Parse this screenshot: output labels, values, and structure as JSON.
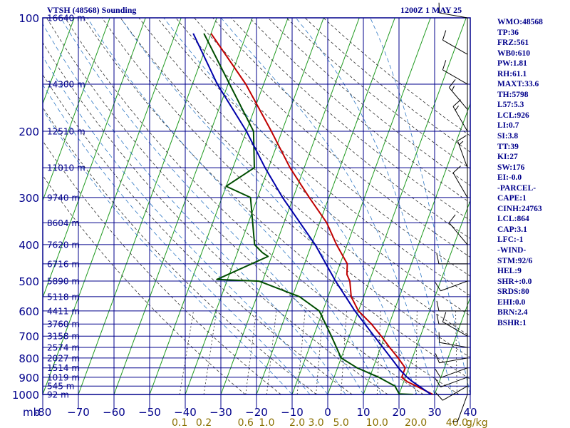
{
  "header": {
    "title": "VTSH (48568) Sounding",
    "time": "1200Z  1 MAY 25"
  },
  "indices": [
    "WMO:48568",
    "TP:36",
    "FRZ:561",
    "WB0:610",
    "PW:1.81",
    "RH:61.1",
    "MAXT:33.6",
    "TH:5798",
    "L57:5.3",
    "LCL:926",
    "LI:0.7",
    "SI:3.8",
    "TT:39",
    "KI:27",
    "SW:176",
    "EI:-0.0",
    "-PARCEL-",
    "CAPE:1",
    "CINH:24763",
    "LCL:864",
    "CAP:3.1",
    "LFC:-1",
    "-WIND-",
    "STM:92/6",
    "HEL:9",
    "SHR+:0.0",
    "SRDS:80",
    "EHI:0.0",
    "BRN:2.4",
    "BSHR:1"
  ],
  "chart_data": {
    "type": "line",
    "title": "VTSH (48568) Sounding",
    "xlabel": "",
    "ylabel": "",
    "x_unit": "°C",
    "y_unit": "mb",
    "xlim": [
      -80,
      40
    ],
    "ylim": [
      1000,
      100
    ],
    "y_scale": "log",
    "x_ticks": [
      -80,
      -70,
      -60,
      -50,
      -40,
      -30,
      -20,
      -10,
      0,
      10,
      20,
      30,
      40
    ],
    "x_tick_labels": [
      "-80",
      "−70",
      "−60",
      "−50",
      "−40",
      "−30",
      "−20",
      "−10",
      "0",
      "10",
      "20",
      "30",
      "40"
    ],
    "y_ticks": [
      100,
      200,
      300,
      400,
      500,
      600,
      700,
      800,
      900,
      1000
    ],
    "y_tick_labels": [
      "100",
      "200",
      "300",
      "400",
      "500",
      "600",
      "700",
      "800",
      "900",
      "1000"
    ],
    "y_axis_unit_label": "mb",
    "height_labels": [
      {
        "p": 100,
        "text": "16640 m"
      },
      {
        "p": 150,
        "text": "14300 m"
      },
      {
        "p": 200,
        "text": "12510 m"
      },
      {
        "p": 250,
        "text": "11010 m"
      },
      {
        "p": 300,
        "text": "9740 m"
      },
      {
        "p": 350,
        "text": "8604 m"
      },
      {
        "p": 400,
        "text": "7620 m"
      },
      {
        "p": 450,
        "text": "6716 m"
      },
      {
        "p": 500,
        "text": "5890 m"
      },
      {
        "p": 550,
        "text": "5118 m"
      },
      {
        "p": 600,
        "text": "4411 m"
      },
      {
        "p": 650,
        "text": "3760 m"
      },
      {
        "p": 700,
        "text": "3158 m"
      },
      {
        "p": 750,
        "text": "2574 m"
      },
      {
        "p": 800,
        "text": "2027 m"
      },
      {
        "p": 850,
        "text": "1514 m"
      },
      {
        "p": 900,
        "text": "1019 m"
      },
      {
        "p": 950,
        "text": "545 m"
      },
      {
        "p": 1000,
        "text": "92 m"
      }
    ],
    "mixing_ratio_labels": [
      "0.1",
      "0.2",
      "0.6",
      "1.0",
      "2.0",
      "3.0",
      "5.0",
      "10.0",
      "20.0",
      "40.0"
    ],
    "mixing_ratio_unit": "g/kg",
    "colors": {
      "grid": "#00008b",
      "isotherm": "#1f9a1f",
      "dry_adiabat": "#2f2f2f",
      "moist_adiabat": "#2f78c4",
      "temperature": "#c00000",
      "dewpoint": "#004d00",
      "parcel": "#0000aa",
      "text": "#00008b",
      "mixing_label": "#8a7000"
    },
    "series": [
      {
        "role": "temperature",
        "points": [
          {
            "p": 1000,
            "t": 29.5
          },
          {
            "p": 950,
            "t": 24
          },
          {
            "p": 925,
            "t": 21
          },
          {
            "p": 900,
            "t": 19
          },
          {
            "p": 850,
            "t": 19
          },
          {
            "p": 800,
            "t": 16
          },
          {
            "p": 750,
            "t": 12.5
          },
          {
            "p": 700,
            "t": 9
          },
          {
            "p": 650,
            "t": 5
          },
          {
            "p": 600,
            "t": 0
          },
          {
            "p": 550,
            "t": -3.5
          },
          {
            "p": 500,
            "t": -5.5
          },
          {
            "p": 480,
            "t": -7
          },
          {
            "p": 450,
            "t": -8
          },
          {
            "p": 400,
            "t": -13
          },
          {
            "p": 350,
            "t": -18
          },
          {
            "p": 300,
            "t": -25.5
          },
          {
            "p": 250,
            "t": -34
          },
          {
            "p": 200,
            "t": -43
          },
          {
            "p": 150,
            "t": -55
          },
          {
            "p": 110,
            "t": -70
          }
        ]
      },
      {
        "role": "dewpoint",
        "points": [
          {
            "p": 1000,
            "t": 24
          },
          {
            "p": 997,
            "t": 20
          },
          {
            "p": 950,
            "t": 18
          },
          {
            "p": 900,
            "t": 12.5
          },
          {
            "p": 850,
            "t": 5.5
          },
          {
            "p": 800,
            "t": 0
          },
          {
            "p": 700,
            "t": -5
          },
          {
            "p": 600,
            "t": -11
          },
          {
            "p": 550,
            "t": -18
          },
          {
            "p": 500,
            "t": -31
          },
          {
            "p": 495,
            "t": -43
          },
          {
            "p": 430,
            "t": -31
          },
          {
            "p": 420,
            "t": -33
          },
          {
            "p": 400,
            "t": -36
          },
          {
            "p": 300,
            "t": -42
          },
          {
            "p": 280,
            "t": -50
          },
          {
            "p": 250,
            "t": -44
          },
          {
            "p": 200,
            "t": -48
          },
          {
            "p": 110,
            "t": -72
          }
        ]
      },
      {
        "role": "parcel",
        "points": [
          {
            "p": 1000,
            "t": 29
          },
          {
            "p": 925,
            "t": 22.5
          },
          {
            "p": 900,
            "t": 20.5
          },
          {
            "p": 864,
            "t": 18
          },
          {
            "p": 800,
            "t": 14
          },
          {
            "p": 700,
            "t": 7
          },
          {
            "p": 600,
            "t": -1
          },
          {
            "p": 500,
            "t": -9.5
          },
          {
            "p": 400,
            "t": -19
          },
          {
            "p": 300,
            "t": -33
          },
          {
            "p": 250,
            "t": -41
          },
          {
            "p": 200,
            "t": -50
          },
          {
            "p": 150,
            "t": -63
          },
          {
            "p": 110,
            "t": -75
          }
        ]
      }
    ],
    "wind_barbs": [
      {
        "p": 1000,
        "dir": 200,
        "spd": 5
      },
      {
        "p": 950,
        "dir": 240,
        "spd": 10
      },
      {
        "p": 900,
        "dir": 250,
        "spd": 10
      },
      {
        "p": 850,
        "dir": 250,
        "spd": 10
      },
      {
        "p": 800,
        "dir": 260,
        "spd": 10
      },
      {
        "p": 750,
        "dir": 280,
        "spd": 10
      },
      {
        "p": 700,
        "dir": 300,
        "spd": 10
      },
      {
        "p": 650,
        "dir": 270,
        "spd": 10
      },
      {
        "p": 600,
        "dir": 270,
        "spd": 10
      },
      {
        "p": 500,
        "dir": 250,
        "spd": 10
      },
      {
        "p": 450,
        "dir": 270,
        "spd": 10
      },
      {
        "p": 400,
        "dir": 320,
        "spd": 10
      },
      {
        "p": 300,
        "dir": 330,
        "spd": 10
      },
      {
        "p": 250,
        "dir": 340,
        "spd": 15
      },
      {
        "p": 200,
        "dir": 330,
        "spd": 15
      },
      {
        "p": 175,
        "dir": 320,
        "spd": 15
      },
      {
        "p": 150,
        "dir": 300,
        "spd": 10
      },
      {
        "p": 125,
        "dir": 300,
        "spd": 10
      },
      {
        "p": 100,
        "dir": 280,
        "spd": 10
      }
    ]
  }
}
